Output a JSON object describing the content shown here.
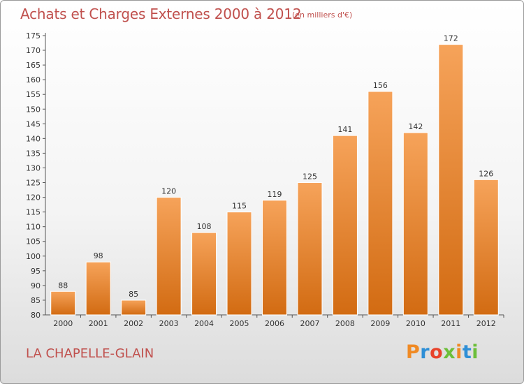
{
  "chart_data": {
    "type": "bar",
    "title": "Achats et Charges Externes 2000 à 2012",
    "subtitle": "(en milliers d'€)",
    "categories": [
      "2000",
      "2001",
      "2002",
      "2003",
      "2004",
      "2005",
      "2006",
      "2007",
      "2008",
      "2009",
      "2010",
      "2011",
      "2012"
    ],
    "values": [
      88,
      98,
      85,
      120,
      108,
      115,
      119,
      125,
      141,
      156,
      142,
      172,
      126
    ],
    "ylim": [
      80,
      175
    ],
    "yticks": [
      80,
      85,
      90,
      95,
      100,
      105,
      110,
      115,
      120,
      125,
      130,
      135,
      140,
      145,
      150,
      155,
      160,
      165,
      170,
      175
    ],
    "grid": false,
    "legend": "none",
    "colors": {
      "bar_top": "#f6a35a",
      "bar_bottom": "#d26b12",
      "title": "#c0504d"
    }
  },
  "footer": {
    "commune": "LA CHAPELLE-GLAIN",
    "logo": "Proxiti",
    "logo_colors": [
      "#f08a24",
      "#2e8fd6",
      "#e8432b",
      "#6cbf3a",
      "#f08a24",
      "#2e8fd6",
      "#6cbf3a"
    ]
  }
}
